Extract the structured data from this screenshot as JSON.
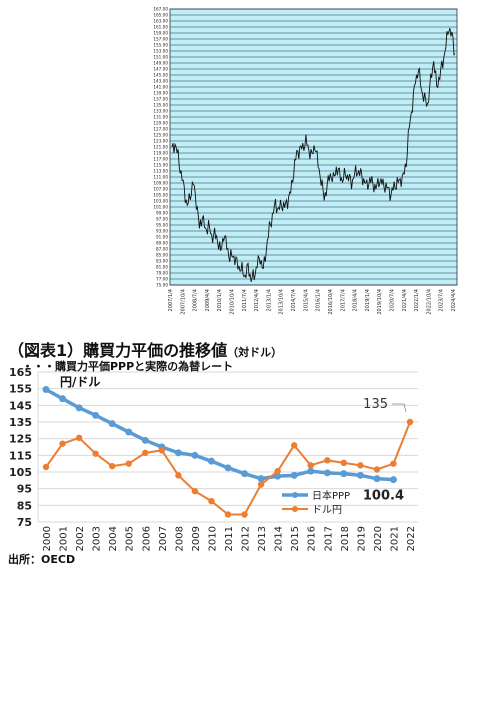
{
  "top_chart": {
    "y_ticks": [
      "167.00",
      "165.00",
      "163.00",
      "161.00",
      "159.00",
      "157.00",
      "155.00",
      "153.00",
      "151.00",
      "149.00",
      "147.00",
      "145.00",
      "143.00",
      "141.00",
      "139.00",
      "137.00",
      "135.00",
      "133.00",
      "131.00",
      "129.00",
      "127.00",
      "125.00",
      "123.00",
      "121.00",
      "119.00",
      "117.00",
      "115.00",
      "113.00",
      "111.00",
      "109.00",
      "107.00",
      "105.00",
      "103.00",
      "101.00",
      "99.00",
      "97.00",
      "95.00",
      "93.00",
      "91.00",
      "89.00",
      "87.00",
      "85.00",
      "83.00",
      "81.00",
      "79.00",
      "77.00",
      "75.00"
    ],
    "x_ticks": [
      "2007/1/4",
      "2007/10/4",
      "2008/7/4",
      "2009/4/4",
      "2010/1/4",
      "2010/10/4",
      "2011/7/4",
      "2012/4/4",
      "2013/1/4",
      "2013/10/4",
      "2014/7/4",
      "2015/4/4",
      "2016/1/4",
      "2016/10/4",
      "2017/7/4",
      "2018/4/4",
      "2019/1/4",
      "2019/10/4",
      "2020/7/4",
      "2021/4/4",
      "2022/1/4",
      "2022/10/4",
      "2023/7/4",
      "2024/4/4"
    ],
    "series": [
      [
        0,
        120
      ],
      [
        3,
        122
      ],
      [
        6,
        118
      ],
      [
        9,
        112
      ],
      [
        12,
        107
      ],
      [
        15,
        101
      ],
      [
        18,
        105
      ],
      [
        21,
        109
      ],
      [
        24,
        103
      ],
      [
        27,
        94
      ],
      [
        30,
        98
      ],
      [
        33,
        93
      ],
      [
        36,
        95
      ],
      [
        39,
        91
      ],
      [
        42,
        92
      ],
      [
        45,
        90
      ],
      [
        48,
        86
      ],
      [
        51,
        92
      ],
      [
        54,
        88
      ],
      [
        57,
        84
      ],
      [
        60,
        85
      ],
      [
        63,
        83
      ],
      [
        66,
        81
      ],
      [
        69,
        80
      ],
      [
        72,
        78
      ],
      [
        75,
        81
      ],
      [
        78,
        77
      ],
      [
        81,
        78
      ],
      [
        84,
        82
      ],
      [
        87,
        84
      ],
      [
        90,
        80
      ],
      [
        93,
        87
      ],
      [
        96,
        94
      ],
      [
        99,
        98
      ],
      [
        102,
        102
      ],
      [
        105,
        100
      ],
      [
        108,
        102
      ],
      [
        111,
        101
      ],
      [
        114,
        103
      ],
      [
        117,
        106
      ],
      [
        120,
        113
      ],
      [
        123,
        119
      ],
      [
        126,
        120
      ],
      [
        129,
        121
      ],
      [
        132,
        123
      ],
      [
        135,
        120
      ],
      [
        138,
        118
      ],
      [
        141,
        122
      ],
      [
        144,
        115
      ],
      [
        147,
        110
      ],
      [
        150,
        104
      ],
      [
        153,
        108
      ],
      [
        156,
        112
      ],
      [
        159,
        110
      ],
      [
        162,
        114
      ],
      [
        165,
        112
      ],
      [
        168,
        110
      ],
      [
        171,
        112
      ],
      [
        174,
        111
      ],
      [
        177,
        109
      ],
      [
        180,
        112
      ],
      [
        183,
        113
      ],
      [
        186,
        112
      ],
      [
        189,
        110
      ],
      [
        192,
        108
      ],
      [
        195,
        110
      ],
      [
        198,
        109
      ],
      [
        201,
        107
      ],
      [
        204,
        110
      ],
      [
        207,
        109
      ],
      [
        210,
        108
      ],
      [
        213,
        107
      ],
      [
        216,
        105
      ],
      [
        219,
        108
      ],
      [
        222,
        109
      ],
      [
        225,
        110
      ],
      [
        228,
        111
      ],
      [
        231,
        116
      ],
      [
        234,
        128
      ],
      [
        237,
        135
      ],
      [
        240,
        143
      ],
      [
        243,
        147
      ],
      [
        246,
        140
      ],
      [
        249,
        137
      ],
      [
        252,
        135
      ],
      [
        255,
        143
      ],
      [
        258,
        150
      ],
      [
        261,
        141
      ],
      [
        264,
        145
      ],
      [
        267,
        149
      ],
      [
        270,
        155
      ],
      [
        273,
        161
      ],
      [
        276,
        158
      ],
      [
        279,
        152
      ]
    ]
  },
  "chart_data": {
    "type": "line",
    "title": "（図表1）購買力平価の推移値",
    "title_note": "（対ドル）",
    "subtitle": "・・・購買力平価PPPと実際の為替レート",
    "ylabel": "円/ドル",
    "ylim": [
      75,
      165
    ],
    "y_ticks": [
      "165",
      "155",
      "145",
      "135",
      "125",
      "115",
      "105",
      "95",
      "85",
      "75"
    ],
    "categories": [
      "2000",
      "2001",
      "2002",
      "2003",
      "2004",
      "2005",
      "2006",
      "2007",
      "2008",
      "2009",
      "2010",
      "2011",
      "2012",
      "2013",
      "2014",
      "2015",
      "2016",
      "2017",
      "2018",
      "2019",
      "2020",
      "2021",
      "2022"
    ],
    "series": [
      {
        "name": "日本PPP",
        "color": "#5b9bd5",
        "values": [
          154.5,
          149,
          143.5,
          139,
          134,
          129,
          124,
          120,
          116.5,
          115,
          111.5,
          107.5,
          104,
          101,
          102.5,
          103,
          105.5,
          104.5,
          104,
          103,
          101,
          100.4,
          null
        ]
      },
      {
        "name": "ドル円",
        "color": "#ed7d31",
        "values": [
          108,
          122,
          125.5,
          116,
          108.5,
          110,
          116.5,
          118,
          103,
          93.5,
          87.5,
          79.5,
          79.5,
          97.5,
          105.5,
          121,
          109,
          112,
          110.5,
          109,
          106.5,
          110,
          135
        ]
      }
    ],
    "annotations": [
      "135",
      "100.4"
    ],
    "legend_position": "right-middle",
    "grid": true
  },
  "source": "出所：OECD"
}
